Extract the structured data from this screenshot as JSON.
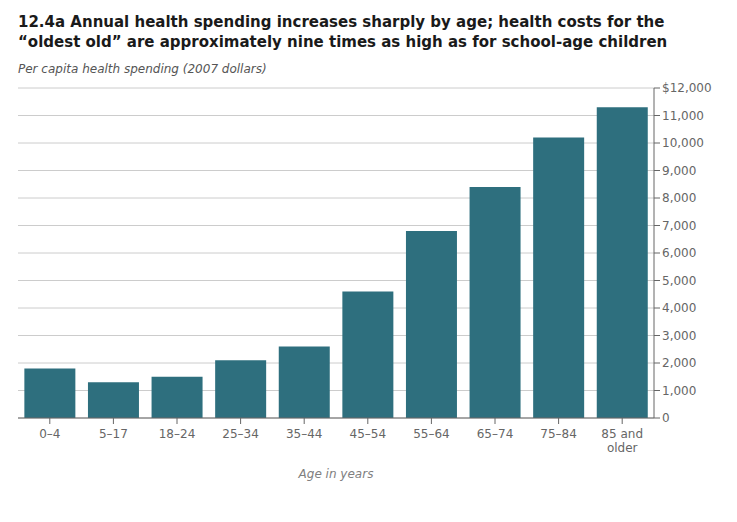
{
  "chart_data": {
    "type": "bar",
    "title": "12.4a Annual health spending increases sharply by age; health costs for the “oldest old” are approximately nine times as high as for school-age children",
    "ylabel": "Per capita health spending (2007 dollars)",
    "xlabel": "Age in years",
    "categories": [
      "0–4",
      "5–17",
      "18–24",
      "25–34",
      "35–44",
      "45–54",
      "55–64",
      "65–74",
      "75–84",
      "85 and\nolder"
    ],
    "values": [
      1800,
      1300,
      1500,
      2100,
      2600,
      4600,
      6800,
      8400,
      10200,
      11300
    ],
    "color": "#2e6f7e",
    "ylim": [
      0,
      12000
    ],
    "yticks": [
      0,
      {
        "value": 1000,
        "label": "1,000"
      },
      {
        "value": 2000,
        "label": "2,000"
      },
      {
        "value": 3000,
        "label": "3,000"
      },
      {
        "value": 4000,
        "label": "4,000"
      },
      {
        "value": 5000,
        "label": "5,000"
      },
      {
        "value": 6000,
        "label": "6,000"
      },
      {
        "value": 7000,
        "label": "7,000"
      },
      {
        "value": 8000,
        "label": "8,000"
      },
      {
        "value": 9000,
        "label": "9,000"
      },
      {
        "value": 10000,
        "label": "10,000"
      },
      {
        "value": 11000,
        "label": "11,000"
      },
      {
        "value": 12000,
        "label": "$12,000"
      }
    ],
    "grid": true
  }
}
